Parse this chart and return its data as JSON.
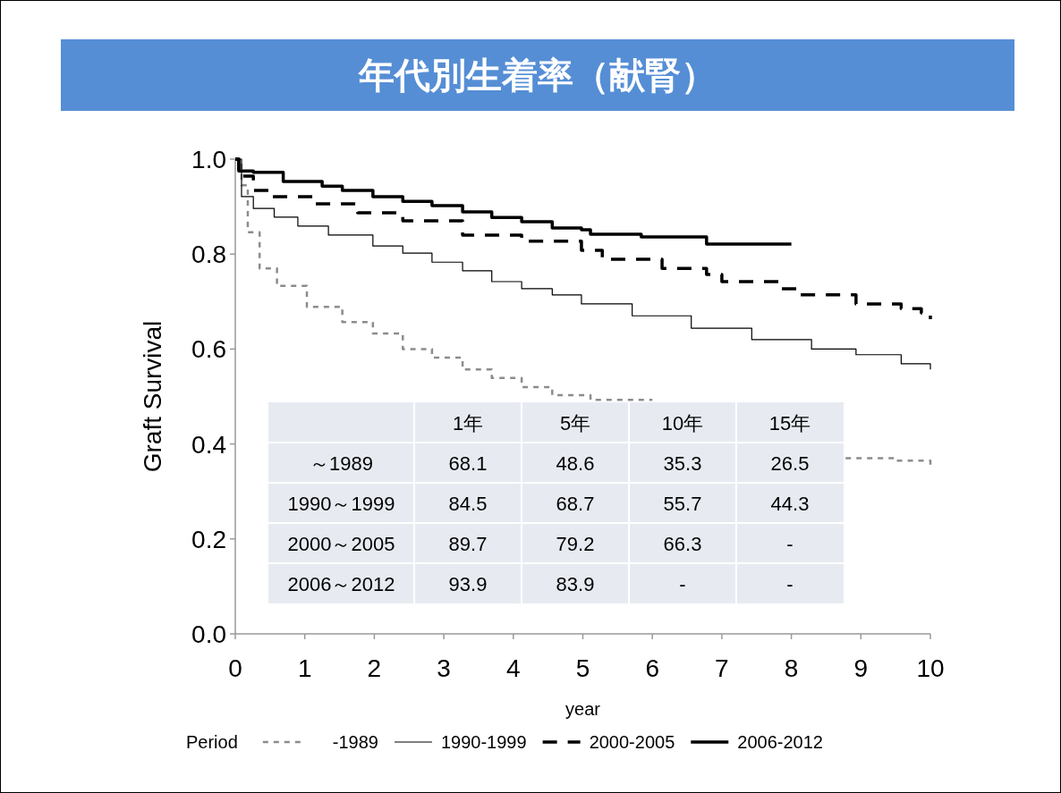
{
  "chart_data": {
    "type": "step",
    "title": "年代別生着率（献腎）",
    "xlabel": "year",
    "ylabel": "Graft Survival",
    "legend_title": "Period",
    "legend": "bottom",
    "xlim": [
      0,
      10
    ],
    "xticks": [
      0,
      1,
      2,
      3,
      4,
      5,
      6,
      7,
      8,
      9,
      10
    ],
    "ylim": [
      0,
      1
    ],
    "yticks": [
      {
        "value": 0,
        "label": "0.0"
      },
      0.2,
      0.4,
      0.6,
      0.8,
      {
        "value": 1,
        "label": "1.0"
      }
    ],
    "series": [
      {
        "name": "-1989",
        "color": "#8c8c8c",
        "line_style": "dashed",
        "x": [
          0,
          0.09,
          0.18,
          0.35,
          0.6,
          1.03,
          1.54,
          1.98,
          2.41,
          2.83,
          3.27,
          3.69,
          4.12,
          4.56,
          5.11,
          6,
          8.78,
          9.49,
          10
        ],
        "values": [
          1,
          0.945,
          0.846,
          0.77,
          0.733,
          0.689,
          0.657,
          0.633,
          0.6,
          0.582,
          0.557,
          0.539,
          0.52,
          0.503,
          0.493,
          null,
          0.37,
          0.365,
          0.353
        ]
      },
      {
        "name": "1990-1999",
        "color": "#000000",
        "line_style": "solid",
        "x": [
          0,
          0.09,
          0.26,
          0.56,
          0.9,
          1.34,
          1.98,
          2.41,
          2.83,
          3.27,
          3.69,
          4.12,
          4.56,
          4.98,
          5.71,
          6.56,
          7.43,
          8.29,
          8.93,
          9.58,
          10
        ],
        "values": [
          1,
          0.921,
          0.896,
          0.878,
          0.859,
          0.84,
          0.817,
          0.802,
          0.783,
          0.765,
          0.742,
          0.727,
          0.714,
          0.695,
          0.67,
          0.644,
          0.62,
          0.6,
          0.588,
          0.569,
          0.557
        ]
      },
      {
        "name": "2000-2005",
        "color": "#000000",
        "line_style": "dashed",
        "x": [
          0,
          0.05,
          0.26,
          0.51,
          1.12,
          1.76,
          2.41,
          3.27,
          4.12,
          4.98,
          5.28,
          6.14,
          6.78,
          7.0,
          7.85,
          8.07,
          8.93,
          9.58,
          9.87,
          10
        ],
        "values": [
          1,
          0.964,
          0.934,
          0.921,
          0.906,
          0.887,
          0.87,
          0.84,
          0.827,
          0.808,
          0.789,
          0.77,
          0.757,
          0.742,
          0.727,
          0.714,
          0.695,
          0.685,
          0.676,
          0.663
        ]
      },
      {
        "name": "2006-2012",
        "color": "#000000",
        "line_style": "solid",
        "x": [
          0,
          0.05,
          0.26,
          0.69,
          1.25,
          1.54,
          1.98,
          2.41,
          2.83,
          3.27,
          3.69,
          4.12,
          4.56,
          4.98,
          5.11,
          5.84,
          6.78,
          8.0
        ],
        "values": [
          1,
          0.975,
          0.972,
          0.953,
          0.943,
          0.934,
          0.921,
          0.911,
          0.902,
          0.889,
          0.877,
          0.868,
          0.855,
          0.851,
          0.842,
          0.836,
          0.821,
          0.821
        ]
      }
    ],
    "annotations": [
      "1年",
      "5年",
      "10年",
      "15年",
      "～1989",
      "68.1",
      "48.6",
      "35.3",
      "26.5",
      "1990～1999",
      "84.5",
      "68.7",
      "55.7",
      "44.3",
      "2000～2005",
      "89.7",
      "79.2",
      "66.3",
      "-",
      "2006～2012",
      "93.9",
      "83.9",
      "-",
      "-"
    ]
  }
}
